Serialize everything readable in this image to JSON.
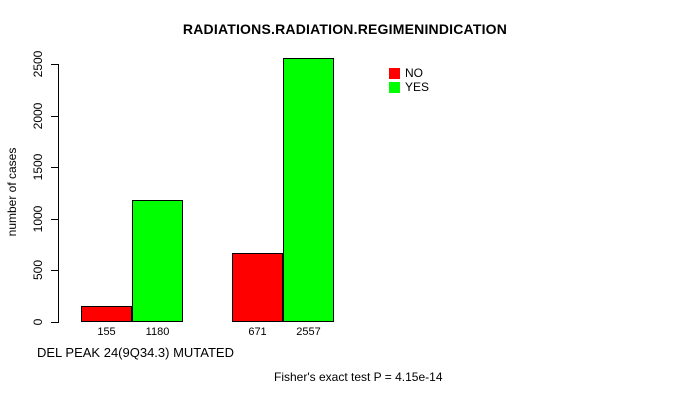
{
  "chart_data": {
    "type": "bar",
    "title": "RADIATIONS.RADIATION.REGIMENINDICATION",
    "xlabel": "DEL PEAK 24(9Q34.3) MUTATED",
    "ylabel": "number of cases",
    "ylim": [
      0,
      2500
    ],
    "y_ticks": [
      0,
      500,
      1000,
      1500,
      2000,
      2500
    ],
    "grid": false,
    "legend_position": "top-right",
    "series": [
      {
        "name": "NO",
        "color": "#ff0000",
        "values": [
          155,
          671
        ]
      },
      {
        "name": "YES",
        "color": "#00ff00",
        "values": [
          1180,
          2557
        ]
      }
    ],
    "bar_labels": [
      "155",
      "1180",
      "671",
      "2557"
    ],
    "annotation": "Fisher's exact test P = 4.15e-14",
    "colors": {
      "axis": "#000000",
      "background": "#ffffff",
      "no": "#ff0000",
      "yes": "#00ff00"
    }
  }
}
